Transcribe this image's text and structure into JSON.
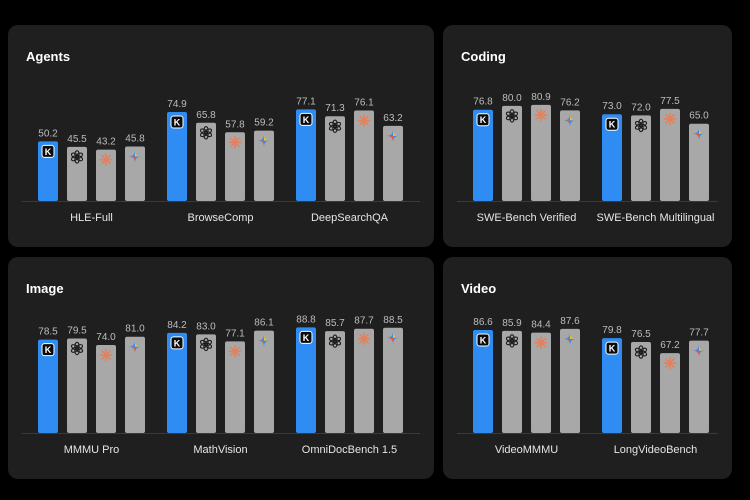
{
  "colors": {
    "page_bg": "#000000",
    "panel_bg": "#1f1f1f",
    "highlight_bar": "#2f8cf2",
    "other_bar": "#a8a8a8",
    "baseline": "#3a3a3a",
    "value_text": "#bdbdbd",
    "label_text": "#e6e6e6"
  },
  "legend_icons": [
    "k-logo-icon",
    "openai-logo-icon",
    "claude-star-icon",
    "gemini-sparkle-icon"
  ],
  "chart_data": [
    {
      "type": "bar",
      "title": "Agents",
      "ylim": [
        0,
        100
      ],
      "categories": [
        "HLE-Full",
        "BrowseComp",
        "DeepSearchQA"
      ],
      "series": [
        {
          "icon": "k-logo-icon",
          "values": [
            50.2,
            74.9,
            77.1
          ]
        },
        {
          "icon": "openai-logo-icon",
          "values": [
            45.5,
            65.8,
            71.3
          ]
        },
        {
          "icon": "claude-star-icon",
          "values": [
            43.2,
            57.8,
            76.1
          ]
        },
        {
          "icon": "gemini-sparkle-icon",
          "values": [
            45.8,
            59.2,
            63.2
          ]
        }
      ]
    },
    {
      "type": "bar",
      "title": "Coding",
      "ylim": [
        0,
        100
      ],
      "categories": [
        "SWE-Bench Verified",
        "SWE-Bench Multilingual"
      ],
      "series": [
        {
          "icon": "k-logo-icon",
          "values": [
            76.8,
            73.0
          ]
        },
        {
          "icon": "openai-logo-icon",
          "values": [
            80.0,
            72.0
          ]
        },
        {
          "icon": "claude-star-icon",
          "values": [
            80.9,
            77.5
          ]
        },
        {
          "icon": "gemini-sparkle-icon",
          "values": [
            76.2,
            65.0
          ]
        }
      ]
    },
    {
      "type": "bar",
      "title": "Image",
      "ylim": [
        0,
        100
      ],
      "categories": [
        "MMMU Pro",
        "MathVision",
        "OmniDocBench 1.5"
      ],
      "series": [
        {
          "icon": "k-logo-icon",
          "values": [
            78.5,
            84.2,
            88.8
          ]
        },
        {
          "icon": "openai-logo-icon",
          "values": [
            79.5,
            83.0,
            85.7
          ]
        },
        {
          "icon": "claude-star-icon",
          "values": [
            74.0,
            77.1,
            87.7
          ]
        },
        {
          "icon": "gemini-sparkle-icon",
          "values": [
            81.0,
            86.1,
            88.5
          ]
        }
      ]
    },
    {
      "type": "bar",
      "title": "Video",
      "ylim": [
        0,
        100
      ],
      "categories": [
        "VideoMMMU",
        "LongVideoBench"
      ],
      "series": [
        {
          "icon": "k-logo-icon",
          "values": [
            86.6,
            79.8
          ]
        },
        {
          "icon": "openai-logo-icon",
          "values": [
            85.9,
            76.5
          ]
        },
        {
          "icon": "claude-star-icon",
          "values": [
            84.4,
            67.2
          ]
        },
        {
          "icon": "gemini-sparkle-icon",
          "values": [
            87.6,
            77.7
          ]
        }
      ]
    }
  ]
}
